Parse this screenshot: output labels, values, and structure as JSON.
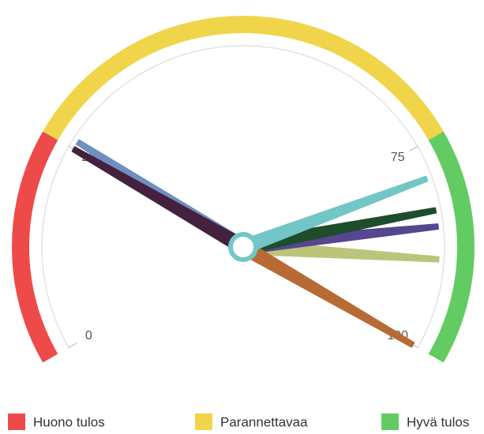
{
  "chart_data": {
    "type": "gauge",
    "ylim": [
      0,
      100
    ],
    "yticks": [
      0,
      25,
      75,
      100
    ],
    "bands": [
      {
        "name": "Huono tulos",
        "from": 0,
        "to": 25,
        "color": "#ee4a4a"
      },
      {
        "name": "Parannettavaa",
        "from": 25,
        "to": 75,
        "color": "#f0d54a"
      },
      {
        "name": "Hyvä tulos",
        "from": 75,
        "to": 100,
        "color": "#62cc62"
      }
    ],
    "values": [
      26,
      89,
      85,
      83,
      100,
      25,
      79
    ],
    "colors": [
      "#6f8fc0",
      "#bcc47a",
      "#55468f",
      "#1e4d2b",
      "#b86a35",
      "#44213f",
      "#72c6c6"
    ]
  }
}
